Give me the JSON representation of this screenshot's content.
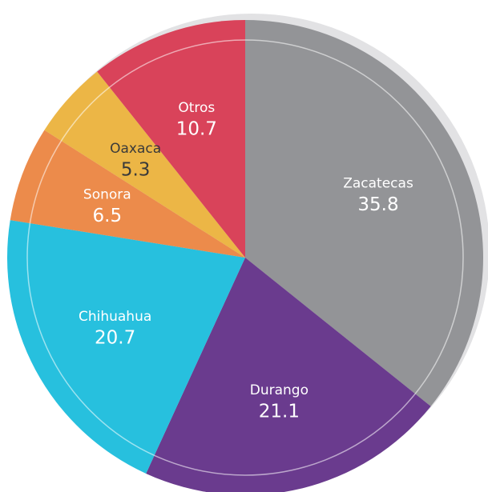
{
  "chart_data": {
    "type": "pie",
    "categories": [
      "Zacatecas",
      "Durango",
      "Chihuahua",
      "Sonora",
      "Oaxaca",
      "Otros"
    ],
    "values": [
      35.8,
      21.1,
      20.7,
      6.5,
      5.3,
      10.7
    ],
    "colors": [
      "#939497",
      "#6a3b8e",
      "#27c0de",
      "#ec8b4b",
      "#ecb646",
      "#d9435a"
    ]
  }
}
